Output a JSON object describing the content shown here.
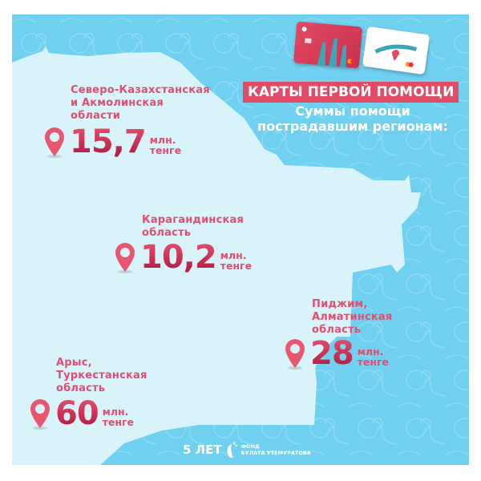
{
  "header": {
    "title": "КАРТЫ ПЕРВОЙ ПОМОЩИ",
    "subtitle_line1": "Суммы помощи",
    "subtitle_line2": "пострадавшим регионам:"
  },
  "regions": [
    {
      "lines": [
        "Северо-Казахстанская",
        "и Акмолинская",
        "области"
      ],
      "amount": "15,7",
      "unit_line1": "млн.",
      "unit_line2": "тенге"
    },
    {
      "lines": [
        "Карагандинская",
        "область"
      ],
      "amount": "10,2",
      "unit_line1": "млн.",
      "unit_line2": "тенге"
    },
    {
      "lines": [
        "Пиджим,",
        "Алматинская",
        "область"
      ],
      "amount": "28",
      "unit_line1": "млн.",
      "unit_line2": "тенге"
    },
    {
      "lines": [
        "Арыс,",
        "Туркестанская",
        "область"
      ],
      "amount": "60",
      "unit_line1": "млн.",
      "unit_line2": "тенге"
    }
  ],
  "footer": {
    "anniversary": "5 ЛЕТ",
    "logo_line1": "ФОНД",
    "logo_line2": "БУЛАТА УТЕМУРАТОВА"
  },
  "colors": {
    "background": "#6fd0ef",
    "map": "#d9f3fb",
    "accent": "#e24b66",
    "amount": "#c81f4b"
  },
  "icons": [
    "map-pin-icon",
    "bank-card-icon",
    "foundation-logo-icon"
  ]
}
